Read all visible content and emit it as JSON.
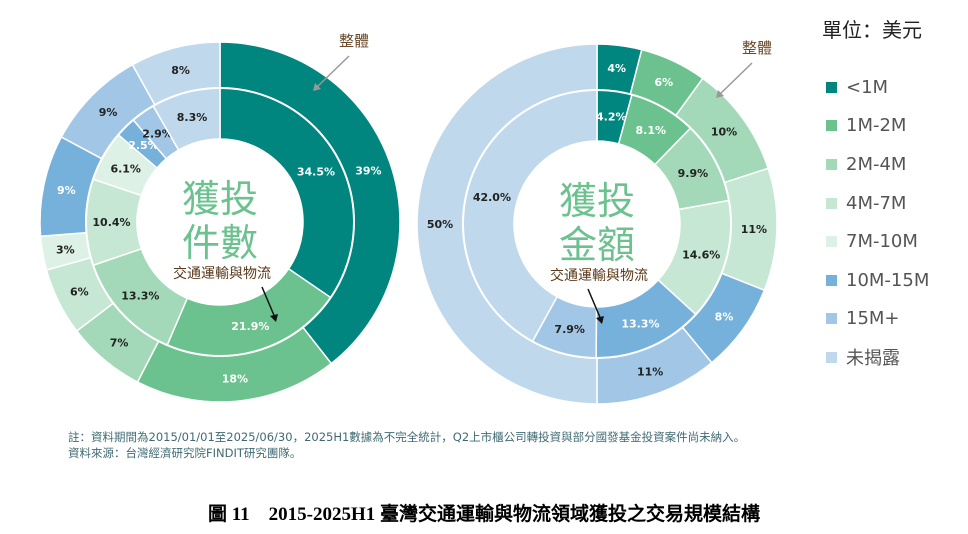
{
  "unit_label": "單位：美元",
  "legend": [
    {
      "label": "<1M",
      "color": "#00857f"
    },
    {
      "label": "1M-2M",
      "color": "#6cc28f"
    },
    {
      "label": "2M-4M",
      "color": "#a3d9b8"
    },
    {
      "label": "4M-7M",
      "color": "#c6e7d3"
    },
    {
      "label": "7M-10M",
      "color": "#ddf1e6"
    },
    {
      "label": "10M-15M",
      "color": "#76b1dc"
    },
    {
      "label": "15M+",
      "color": "#a2c7e6"
    },
    {
      "label": "未揭露",
      "color": "#c0d8ec"
    }
  ],
  "chart_data": [
    {
      "type": "pie",
      "center_title": [
        "獲投",
        "件數"
      ],
      "outer_ring_label": "整體",
      "inner_ring_label": "交通運輸與物流",
      "categories": [
        "<1M",
        "1M-2M",
        "2M-4M",
        "4M-7M",
        "7M-10M",
        "10M-15M",
        "15M+",
        "未揭露"
      ],
      "series": [
        {
          "name": "整體",
          "ring": "outer",
          "values": [
            39,
            18,
            7,
            6,
            3,
            9,
            9,
            8
          ],
          "labels": [
            "39%",
            "18%",
            "7%",
            "6%",
            "3%",
            "9%",
            "9%",
            "8%"
          ]
        },
        {
          "name": "交通運輸與物流",
          "ring": "inner",
          "values": [
            34.5,
            21.9,
            13.3,
            10.4,
            6.1,
            2.5,
            2.9,
            8.3
          ],
          "labels": [
            "34.5%",
            "21.9%",
            "13.3%",
            "10.4%",
            "6.1%",
            "2.5%",
            "2.9%",
            "8.3%"
          ]
        }
      ]
    },
    {
      "type": "pie",
      "center_title": [
        "獲投",
        "金額"
      ],
      "outer_ring_label": "整體",
      "inner_ring_label": "交通運輸與物流",
      "categories": [
        "<1M",
        "1M-2M",
        "2M-4M",
        "4M-7M",
        "10M-15M",
        "15M+",
        "未揭露"
      ],
      "series": [
        {
          "name": "整體",
          "ring": "outer",
          "values": [
            4,
            6,
            10,
            11,
            8,
            11,
            50
          ],
          "labels": [
            "4%",
            "6%",
            "10%",
            "11%",
            "8%",
            "11%",
            "50%"
          ]
        },
        {
          "name": "交通運輸與物流",
          "ring": "inner",
          "values": [
            4.2,
            8.1,
            9.9,
            14.6,
            13.3,
            7.9,
            42.0
          ],
          "labels": [
            "4.2%",
            "8.1%",
            "9.9%",
            "14.6%",
            "13.3%",
            "7.9%",
            "42.0%"
          ]
        }
      ]
    }
  ],
  "notes": [
    "註：資料期間為2015/01/01至2025/06/30，2025H1數據為不完全統計，Q2上市櫃公司轉投資與部分國發基金投資案件尚未納入。",
    "資料來源：台灣經濟研究院FINDIT研究團隊。"
  ],
  "figure_title": "圖 11　2015-2025H1 臺灣交通運輸與物流領域獲投之交易規模結構"
}
